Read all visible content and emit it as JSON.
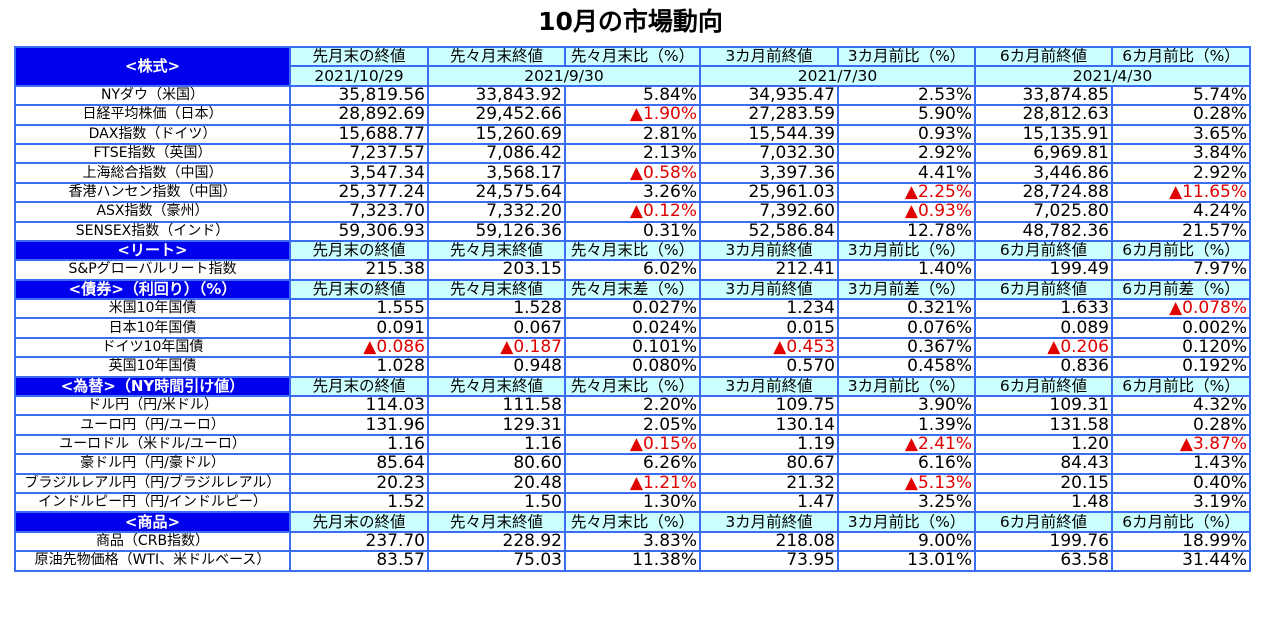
{
  "title": "10月の市場動向",
  "colors": {
    "border": "#3a6cf4",
    "section_bg": "#0000ee",
    "header_bg": "#ccffff",
    "negative": "#e00000"
  },
  "negative_marker": "▲",
  "dates": [
    "2021/10/29",
    "2021/9/30",
    "2021/7/30",
    "2021/4/30"
  ],
  "sections": [
    {
      "title": "<株式>",
      "headers": [
        "先月末の終値",
        "先々月末終値",
        "先々月末比（%）",
        "3カ月前終値",
        "3カ月前比（%）",
        "6カ月前終値",
        "6カ月前比（%）"
      ],
      "rows": [
        {
          "label": "NYダウ（米国）",
          "values": [
            "35,819.56",
            "33,843.92",
            "5.84%",
            "34,935.47",
            "2.53%",
            "33,874.85",
            "5.74%"
          ]
        },
        {
          "label": "日経平均株価（日本）",
          "values": [
            "28,892.69",
            "29,452.66",
            "▲1.90%",
            "27,283.59",
            "5.90%",
            "28,812.63",
            "0.28%"
          ]
        },
        {
          "label": "DAX指数（ドイツ）",
          "values": [
            "15,688.77",
            "15,260.69",
            "2.81%",
            "15,544.39",
            "0.93%",
            "15,135.91",
            "3.65%"
          ]
        },
        {
          "label": "FTSE指数（英国）",
          "values": [
            "7,237.57",
            "7,086.42",
            "2.13%",
            "7,032.30",
            "2.92%",
            "6,969.81",
            "3.84%"
          ]
        },
        {
          "label": "上海総合指数（中国）",
          "values": [
            "3,547.34",
            "3,568.17",
            "▲0.58%",
            "3,397.36",
            "4.41%",
            "3,446.86",
            "2.92%"
          ]
        },
        {
          "label": "香港ハンセン指数（中国）",
          "values": [
            "25,377.24",
            "24,575.64",
            "3.26%",
            "25,961.03",
            "▲2.25%",
            "28,724.88",
            "▲11.65%"
          ]
        },
        {
          "label": "ASX指数（豪州）",
          "values": [
            "7,323.70",
            "7,332.20",
            "▲0.12%",
            "7,392.60",
            "▲0.93%",
            "7,025.80",
            "4.24%"
          ]
        },
        {
          "label": "SENSEX指数（インド）",
          "values": [
            "59,306.93",
            "59,126.36",
            "0.31%",
            "52,586.84",
            "12.78%",
            "48,782.36",
            "21.57%"
          ]
        }
      ]
    },
    {
      "title": "<リート>",
      "headers": [
        "先月末の終値",
        "先々月末終値",
        "先々月末比（%）",
        "3カ月前終値",
        "3カ月前比（%）",
        "6カ月前終値",
        "6カ月前比（%）"
      ],
      "rows": [
        {
          "label": "S&Pグローバルリート指数",
          "values": [
            "215.38",
            "203.15",
            "6.02%",
            "212.41",
            "1.40%",
            "199.49",
            "7.97%"
          ]
        }
      ]
    },
    {
      "title": "<債券>（利回り）（%）",
      "headers": [
        "先月末の終値",
        "先々月末終値",
        "先々月末差（%）",
        "3カ月前終値",
        "3カ月前差（%）",
        "6カ月前終値",
        "6カ月前差（%）"
      ],
      "rows": [
        {
          "label": "米国10年国債",
          "values": [
            "1.555",
            "1.528",
            "0.027%",
            "1.234",
            "0.321%",
            "1.633",
            "▲0.078%"
          ]
        },
        {
          "label": "日本10年国債",
          "values": [
            "0.091",
            "0.067",
            "0.024%",
            "0.015",
            "0.076%",
            "0.089",
            "0.002%"
          ]
        },
        {
          "label": "ドイツ10年国債",
          "values": [
            "▲0.086",
            "▲0.187",
            "0.101%",
            "▲0.453",
            "0.367%",
            "▲0.206",
            "0.120%"
          ]
        },
        {
          "label": "英国10年国債",
          "values": [
            "1.028",
            "0.948",
            "0.080%",
            "0.570",
            "0.458%",
            "0.836",
            "0.192%"
          ]
        }
      ]
    },
    {
      "title": "<為替>（NY時間引け値）",
      "headers": [
        "先月末の終値",
        "先々月末終値",
        "先々月末比（%）",
        "3カ月前終値",
        "3カ月前比（%）",
        "6カ月前終値",
        "6カ月前比（%）"
      ],
      "rows": [
        {
          "label": "ドル円（円/米ドル）",
          "values": [
            "114.03",
            "111.58",
            "2.20%",
            "109.75",
            "3.90%",
            "109.31",
            "4.32%"
          ]
        },
        {
          "label": "ユーロ円（円/ユーロ）",
          "values": [
            "131.96",
            "129.31",
            "2.05%",
            "130.14",
            "1.39%",
            "131.58",
            "0.28%"
          ]
        },
        {
          "label": "ユーロドル（米ドル/ユーロ）",
          "values": [
            "1.16",
            "1.16",
            "▲0.15%",
            "1.19",
            "▲2.41%",
            "1.20",
            "▲3.87%"
          ]
        },
        {
          "label": "豪ドル円（円/豪ドル）",
          "values": [
            "85.64",
            "80.60",
            "6.26%",
            "80.67",
            "6.16%",
            "84.43",
            "1.43%"
          ]
        },
        {
          "label": "ブラジルレアル円（円/ブラジルレアル）",
          "values": [
            "20.23",
            "20.48",
            "▲1.21%",
            "21.32",
            "▲5.13%",
            "20.15",
            "0.40%"
          ]
        },
        {
          "label": "インドルピー円（円/インドルピー）",
          "values": [
            "1.52",
            "1.50",
            "1.30%",
            "1.47",
            "3.25%",
            "1.48",
            "3.19%"
          ]
        }
      ]
    },
    {
      "title": "<商品>",
      "headers": [
        "先月末の終値",
        "先々月末終値",
        "先々月末比（%）",
        "3カ月前終値",
        "3カ月前比（%）",
        "6カ月前終値",
        "6カ月前比（%）"
      ],
      "rows": [
        {
          "label": "商品（CRB指数）",
          "values": [
            "237.70",
            "228.92",
            "3.83%",
            "218.08",
            "9.00%",
            "199.76",
            "18.99%"
          ]
        },
        {
          "label": "原油先物価格（WTI、米ドルベース）",
          "values": [
            "83.57",
            "75.03",
            "11.38%",
            "73.95",
            "13.01%",
            "63.58",
            "31.44%"
          ]
        }
      ]
    }
  ]
}
